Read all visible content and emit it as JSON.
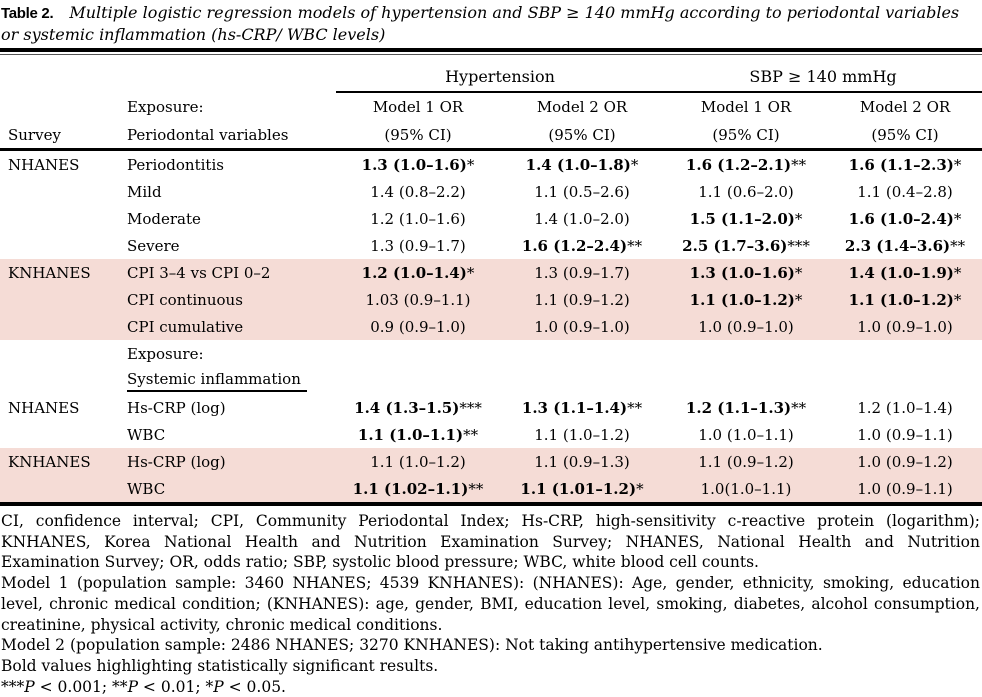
{
  "colors": {
    "highlight_band": "#f5dcd6",
    "rule": "#000000",
    "background": "#ffffff"
  },
  "title": {
    "label": "Table 2.",
    "caption": "Multiple logistic regression models of hypertension and SBP ≥ 140 mmHg according to periodontal variables or systemic inflammation (hs-CRP/ WBC levels)"
  },
  "table": {
    "group_headers": [
      {
        "label": "Hypertension"
      },
      {
        "label": "SBP ≥ 140 mmHg"
      }
    ],
    "col_headers": {
      "survey": "Survey",
      "exposure_line1": "Exposure:",
      "exposure_line2": "Periodontal variables",
      "models": [
        {
          "line1": "Model 1 OR",
          "line2": "(95% CI)"
        },
        {
          "line1": "Model 2 OR",
          "line2": "(95% CI)"
        },
        {
          "line1": "Model 1 OR",
          "line2": "(95% CI)"
        },
        {
          "line1": "Model 2 OR",
          "line2": "(95% CI)"
        }
      ]
    },
    "rows": [
      {
        "survey": "NHANES",
        "variable": "Periodontitis",
        "pink": false,
        "cells": [
          {
            "text": "1.3 (1.0–1.6)",
            "stars": "*",
            "bold": true
          },
          {
            "text": "1.4 (1.0–1.8)",
            "stars": "*",
            "bold": true
          },
          {
            "text": "1.6 (1.2–2.1)",
            "stars": "**",
            "bold": true
          },
          {
            "text": "1.6 (1.1–2.3)",
            "stars": "*",
            "bold": true
          }
        ]
      },
      {
        "survey": "",
        "variable": "Mild",
        "pink": false,
        "cells": [
          {
            "text": "1.4 (0.8–2.2)",
            "stars": "",
            "bold": false
          },
          {
            "text": "1.1 (0.5–2.6)",
            "stars": "",
            "bold": false
          },
          {
            "text": "1.1 (0.6–2.0)",
            "stars": "",
            "bold": false
          },
          {
            "text": "1.1 (0.4–2.8)",
            "stars": "",
            "bold": false
          }
        ]
      },
      {
        "survey": "",
        "variable": "Moderate",
        "pink": false,
        "cells": [
          {
            "text": "1.2 (1.0–1.6)",
            "stars": "",
            "bold": false
          },
          {
            "text": "1.4 (1.0–2.0)",
            "stars": "",
            "bold": false
          },
          {
            "text": "1.5 (1.1–2.0)",
            "stars": "*",
            "bold": true
          },
          {
            "text": "1.6 (1.0–2.4)",
            "stars": "*",
            "bold": true
          }
        ]
      },
      {
        "survey": "",
        "variable": "Severe",
        "pink": false,
        "cells": [
          {
            "text": "1.3 (0.9–1.7)",
            "stars": "",
            "bold": false
          },
          {
            "text": "1.6 (1.2–2.4)",
            "stars": "**",
            "bold": true
          },
          {
            "text": "2.5 (1.7–3.6)",
            "stars": "***",
            "bold": true
          },
          {
            "text": "2.3 (1.4–3.6)",
            "stars": "**",
            "bold": true
          }
        ]
      },
      {
        "survey": "KNHANES",
        "variable": "CPI 3–4 vs CPI 0–2",
        "pink": true,
        "cells": [
          {
            "text": "1.2 (1.0–1.4)",
            "stars": "*",
            "bold": true
          },
          {
            "text": "1.3 (0.9–1.7)",
            "stars": "",
            "bold": false
          },
          {
            "text": "1.3 (1.0–1.6)",
            "stars": "*",
            "bold": true
          },
          {
            "text": "1.4 (1.0–1.9)",
            "stars": "*",
            "bold": true
          }
        ]
      },
      {
        "survey": "",
        "variable": "CPI continuous",
        "pink": true,
        "cells": [
          {
            "text": "1.03 (0.9–1.1)",
            "stars": "",
            "bold": false
          },
          {
            "text": "1.1 (0.9–1.2)",
            "stars": "",
            "bold": false
          },
          {
            "text": "1.1 (1.0–1.2)",
            "stars": "*",
            "bold": true
          },
          {
            "text": "1.1 (1.0–1.2)",
            "stars": "*",
            "bold": true
          }
        ]
      },
      {
        "survey": "",
        "variable": "CPI cumulative",
        "pink": true,
        "cells": [
          {
            "text": "0.9 (0.9–1.0)",
            "stars": "",
            "bold": false
          },
          {
            "text": "1.0 (0.9–1.0)",
            "stars": "",
            "bold": false
          },
          {
            "text": "1.0 (0.9–1.0)",
            "stars": "",
            "bold": false
          },
          {
            "text": "1.0 (0.9–1.0)",
            "stars": "",
            "bold": false
          }
        ]
      },
      {
        "survey": "",
        "variable": "Exposure:",
        "pink": false,
        "section": true,
        "cells": []
      },
      {
        "survey": "",
        "variable": "Systemic inflammation",
        "pink": false,
        "underline": true,
        "cells": []
      },
      {
        "survey": "NHANES",
        "variable": "Hs-CRP (log)",
        "pink": false,
        "cells": [
          {
            "text": "1.4 (1.3–1.5)",
            "stars": "***",
            "bold": true
          },
          {
            "text": "1.3 (1.1–1.4)",
            "stars": "**",
            "bold": true
          },
          {
            "text": "1.2 (1.1–1.3)",
            "stars": "**",
            "bold": true
          },
          {
            "text": "1.2 (1.0–1.4)",
            "stars": "",
            "bold": false
          }
        ]
      },
      {
        "survey": "",
        "variable": "WBC",
        "pink": false,
        "cells": [
          {
            "text": "1.1 (1.0–1.1)",
            "stars": "**",
            "bold": true
          },
          {
            "text": "1.1 (1.0–1.2)",
            "stars": "",
            "bold": false
          },
          {
            "text": "1.0 (1.0–1.1)",
            "stars": "",
            "bold": false
          },
          {
            "text": "1.0 (0.9–1.1)",
            "stars": "",
            "bold": false
          }
        ]
      },
      {
        "survey": "KNHANES",
        "variable": "Hs-CRP (log)",
        "pink": true,
        "cells": [
          {
            "text": "1.1 (1.0–1.2)",
            "stars": "",
            "bold": false
          },
          {
            "text": "1.1 (0.9–1.3)",
            "stars": "",
            "bold": false
          },
          {
            "text": "1.1 (0.9–1.2)",
            "stars": "",
            "bold": false
          },
          {
            "text": "1.0 (0.9–1.2)",
            "stars": "",
            "bold": false
          }
        ]
      },
      {
        "survey": "",
        "variable": "WBC",
        "pink": true,
        "cells": [
          {
            "text": "1.1 (1.02–1.1)",
            "stars": "**",
            "bold": true
          },
          {
            "text": "1.1 (1.01–1.2)",
            "stars": "*",
            "bold": true
          },
          {
            "text": "1.0(1.0–1.1)",
            "stars": "",
            "bold": false
          },
          {
            "text": "1.0 (0.9–1.1)",
            "stars": "",
            "bold": false
          }
        ]
      }
    ]
  },
  "footnotes": {
    "abbreviations": "CI, confidence interval; CPI, Community Periodontal Index; Hs-CRP, high-sensitivity c-reactive protein (logarithm); KNHANES, Korea National Health and Nutrition Examination Survey; NHANES, National Health and Nutrition Examination Survey; OR, odds ratio; SBP, systolic blood pressure; WBC, white blood cell counts.",
    "model1": "Model 1 (population sample: 3460 NHANES; 4539 KNHANES): (NHANES): Age, gender, ethnicity, smoking, education level, chronic medical condition; (KNHANES): age, gender, BMI, education level, smoking, diabetes, alcohol consumption, creatinine, physical activity, chronic medical conditions.",
    "model2": "Model 2 (population sample: 2486 NHANES; 3270 KNHANES): Not taking antihypertensive medication.",
    "bold_note": "Bold values highlighting statistically significant results.",
    "significance_parts": [
      {
        "text": "***",
        "italic": false
      },
      {
        "text": "P",
        "italic": true
      },
      {
        "text": " < 0.001; **",
        "italic": false
      },
      {
        "text": "P",
        "italic": true
      },
      {
        "text": " < 0.01; *",
        "italic": false
      },
      {
        "text": "P",
        "italic": true
      },
      {
        "text": " < 0.05.",
        "italic": false
      }
    ]
  }
}
